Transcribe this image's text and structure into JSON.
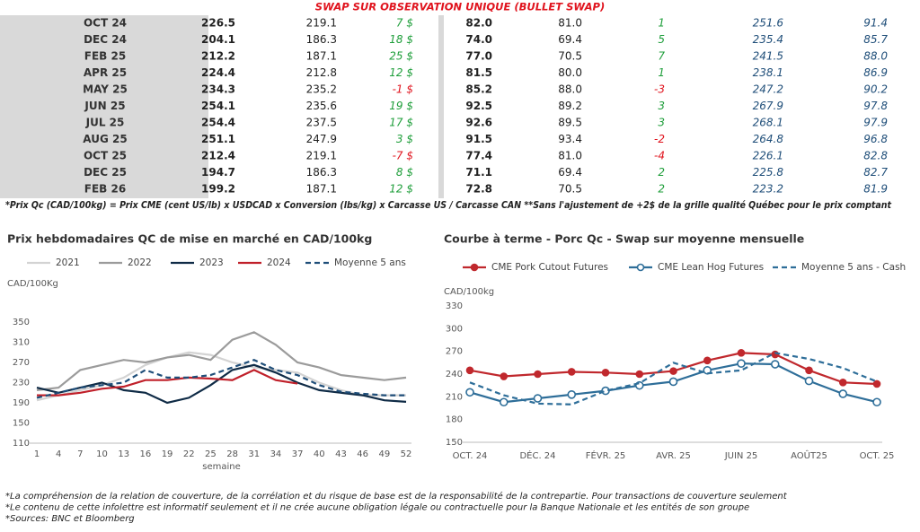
{
  "table": {
    "title": "SWAP SUR OBSERVATION UNIQUE (BULLET SWAP)",
    "rows": [
      [
        "OCT 24",
        "226.5",
        "219.1",
        "7 $",
        "82.0",
        "81.0",
        "1",
        "251.6",
        "91.4"
      ],
      [
        "DEC 24",
        "204.1",
        "186.3",
        "18 $",
        "74.0",
        "69.4",
        "5",
        "235.4",
        "85.7"
      ],
      [
        "FEB 25",
        "212.2",
        "187.1",
        "25 $",
        "77.0",
        "70.5",
        "7",
        "241.5",
        "88.0"
      ],
      [
        "APR 25",
        "224.4",
        "212.8",
        "12 $",
        "81.5",
        "80.0",
        "1",
        "238.1",
        "86.9"
      ],
      [
        "MAY 25",
        "234.3",
        "235.2",
        "-1 $",
        "85.2",
        "88.0",
        "-3",
        "247.2",
        "90.2"
      ],
      [
        "JUN 25",
        "254.1",
        "235.6",
        "19 $",
        "92.5",
        "89.2",
        "3",
        "267.9",
        "97.8"
      ],
      [
        "JUL 25",
        "254.4",
        "237.5",
        "17 $",
        "92.6",
        "89.5",
        "3",
        "268.1",
        "97.9"
      ],
      [
        "AUG 25",
        "251.1",
        "247.9",
        "3 $",
        "91.5",
        "93.4",
        "-2",
        "264.8",
        "96.8"
      ],
      [
        "OCT 25",
        "212.4",
        "219.1",
        "-7 $",
        "77.4",
        "81.0",
        "-4",
        "226.1",
        "82.8"
      ],
      [
        "DEC 25",
        "194.7",
        "186.3",
        "8 $",
        "71.1",
        "69.4",
        "2",
        "225.8",
        "82.7"
      ],
      [
        "FEB 26",
        "199.2",
        "187.1",
        "12 $",
        "72.8",
        "70.5",
        "2",
        "223.2",
        "81.9"
      ]
    ],
    "footnote": "*Prix Qc (CAD/100kg) = Prix CME (cent US/lb) x USDCAD x Conversion (lbs/kg) x Carcasse US / Carcasse CAN **Sans l'ajustement de +2$ de la grille qualité Québec pour le prix comptant"
  },
  "chart_data": [
    {
      "type": "line",
      "title": "Prix hebdomadaires QC de mise en marché en CAD/100kg",
      "ylabel": "CAD/100Kg",
      "xlabel": "semaine",
      "x": [
        1,
        4,
        7,
        10,
        13,
        16,
        19,
        22,
        25,
        28,
        31,
        34,
        37,
        40,
        43,
        46,
        49,
        52
      ],
      "xlim": [
        1,
        52
      ],
      "xticks": [
        1,
        4,
        7,
        10,
        13,
        16,
        19,
        22,
        25,
        28,
        31,
        34,
        37,
        40,
        43,
        46,
        49,
        52
      ],
      "ylim": [
        110,
        350
      ],
      "yticks": [
        110,
        150,
        190,
        230,
        270,
        310,
        350
      ],
      "series": [
        {
          "name": "2021",
          "color": "#d3d3d3",
          "values": [
            195,
            205,
            215,
            225,
            240,
            265,
            280,
            290,
            285,
            270,
            260,
            255,
            250,
            230,
            215,
            205,
            205,
            205
          ]
        },
        {
          "name": "2022",
          "color": "#9b9b9b",
          "values": [
            215,
            220,
            255,
            265,
            275,
            270,
            280,
            285,
            275,
            315,
            330,
            305,
            270,
            260,
            245,
            240,
            235,
            240
          ]
        },
        {
          "name": "2023",
          "color": "#0f2b46",
          "values": [
            220,
            210,
            220,
            230,
            215,
            210,
            190,
            200,
            225,
            255,
            265,
            250,
            230,
            215,
            210,
            205,
            195,
            192
          ]
        },
        {
          "name": "2024",
          "color": "#c0202a",
          "values": [
            205,
            205,
            210,
            218,
            222,
            235,
            235,
            240,
            238,
            235,
            255,
            235,
            228,
            null,
            null,
            null,
            null,
            null
          ]
        },
        {
          "name": "Moyenne 5 ans",
          "color": "#1f4e79",
          "dash": true,
          "values": [
            200,
            210,
            220,
            225,
            230,
            255,
            240,
            240,
            245,
            260,
            275,
            255,
            245,
            225,
            212,
            208,
            205,
            205
          ]
        }
      ]
    },
    {
      "type": "line",
      "title": "Courbe à terme - Porc Qc - Swap sur moyenne mensuelle",
      "ylabel": "CAD/100kg",
      "categories": [
        "OCT. 24",
        null,
        "DÉC. 24",
        null,
        "FÉVR. 25",
        null,
        "AVR. 25",
        null,
        "JUIN 25",
        null,
        "AOÛT25",
        null,
        "OCT. 25"
      ],
      "ylim": [
        150,
        330
      ],
      "yticks": [
        150,
        180,
        210,
        240,
        270,
        300,
        330
      ],
      "series": [
        {
          "name": "CME Pork Cutout Futures",
          "color": "#c0282d",
          "marker": "filled",
          "values": [
            245,
            237,
            240,
            243,
            242,
            240,
            244,
            258,
            268,
            266,
            245,
            229,
            227
          ]
        },
        {
          "name": "CME Lean Hog Futures",
          "color": "#2e6e99",
          "marker": "hollow",
          "values": [
            216,
            203,
            208,
            213,
            218,
            225,
            230,
            245,
            254,
            253,
            231,
            214,
            203
          ]
        },
        {
          "name": "Moyenne 5 ans - Cash",
          "color": "#2e6e99",
          "dash": true,
          "values": [
            229,
            212,
            201,
            200,
            218,
            228,
            255,
            241,
            245,
            268,
            260,
            248,
            230
          ]
        }
      ]
    }
  ],
  "notes": [
    "*La compréhension de la relation de couverture, de la corrélation et du risque de base est de la responsabilité de la contrepartie. Pour transactions de couverture seulement",
    "*Le contenu de cette infolettre est informatif seulement et il ne crée aucune obligation légale ou contractuelle pour la Banque Nationale et les entités de son groupe",
    "*Sources: BNC et Bloomberg"
  ]
}
